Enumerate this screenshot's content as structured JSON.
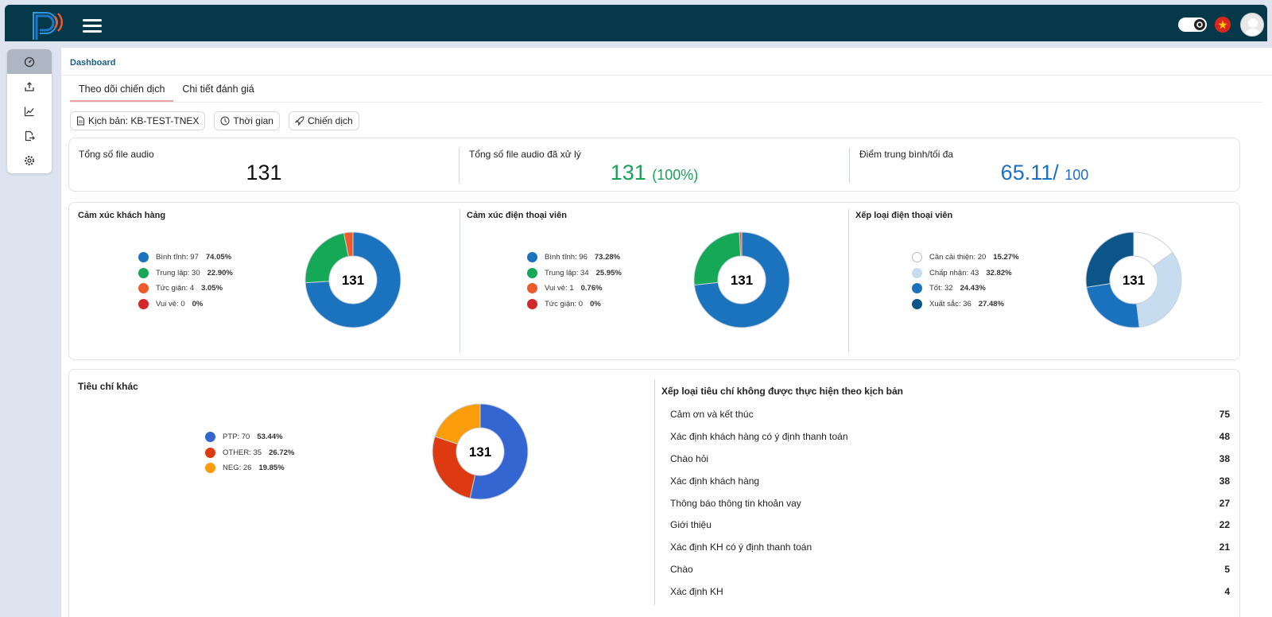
{
  "header": {
    "toggle_state": "on",
    "flag": "vietnam-flag-icon"
  },
  "sidebar": {
    "items": [
      {
        "icon": "dashboard-icon",
        "active": true
      },
      {
        "icon": "upload-icon",
        "active": false
      },
      {
        "icon": "chart-line-icon",
        "active": false
      },
      {
        "icon": "file-export-icon",
        "active": false
      },
      {
        "icon": "gear-icon",
        "active": false
      }
    ]
  },
  "breadcrumb": "Dashboard",
  "tabs": [
    {
      "label": "Theo dõi chiến dịch",
      "active": true
    },
    {
      "label": "Chi tiết đánh giá",
      "active": false
    }
  ],
  "filters": {
    "script": "Kịch bản: KB-TEST-TNEX",
    "time": "Thời gian",
    "campaign": "Chiến dịch"
  },
  "stats": {
    "total": {
      "label": "Tổng số file audio",
      "value": "131"
    },
    "processed": {
      "label": "Tổng số file audio đã xử lý",
      "value": "131",
      "sub": "(100%)"
    },
    "score": {
      "label": "Điểm trung bình/tối đa",
      "value": "65.11/",
      "sub": "100"
    }
  },
  "colors": {
    "accent_green": "#1aa05a",
    "accent_blue": "#1c70c0"
  },
  "chart_data": [
    {
      "type": "pie",
      "title": "Cảm xúc khách hàng",
      "center": "131",
      "slices": [
        {
          "label": "Bình tĩnh: 97",
          "value": 97,
          "pct": "74.05%",
          "color": "#1c73bd"
        },
        {
          "label": "Trung lập: 30",
          "value": 30,
          "pct": "22.90%",
          "color": "#15a857"
        },
        {
          "label": "Tức giận: 4",
          "value": 4,
          "pct": "3.05%",
          "color": "#ef5a2c"
        },
        {
          "label": "Vui vẻ: 0",
          "value": 0,
          "pct": "0%",
          "color": "#d3282a"
        }
      ]
    },
    {
      "type": "pie",
      "title": "Cảm xúc điện thoại viên",
      "center": "131",
      "slices": [
        {
          "label": "Bình tĩnh: 96",
          "value": 96,
          "pct": "73.28%",
          "color": "#1c73bd"
        },
        {
          "label": "Trung lập: 34",
          "value": 34,
          "pct": "25.95%",
          "color": "#15a857"
        },
        {
          "label": "Vui vẻ: 1",
          "value": 1,
          "pct": "0.76%",
          "color": "#ef5a2c"
        },
        {
          "label": "Tức giận: 0",
          "value": 0,
          "pct": "0%",
          "color": "#d3282a"
        }
      ]
    },
    {
      "type": "pie",
      "title": "Xếp loại điện thoại viên",
      "center": "131",
      "slices": [
        {
          "label": "Cần cải thiện: 20",
          "value": 20,
          "pct": "15.27%",
          "color": "#ffffff"
        },
        {
          "label": "Chấp nhận: 43",
          "value": 43,
          "pct": "32.82%",
          "color": "#c7dcee"
        },
        {
          "label": "Tốt: 32",
          "value": 32,
          "pct": "24.43%",
          "color": "#1a72bf"
        },
        {
          "label": "Xuất sắc: 36",
          "value": 36,
          "pct": "27.48%",
          "color": "#0b5589"
        }
      ]
    },
    {
      "type": "pie",
      "title": "Tiêu chí khác",
      "center": "131",
      "slices": [
        {
          "label": "PTP: 70",
          "value": 70,
          "pct": "53.44%",
          "color": "#3565d0"
        },
        {
          "label": "OTHER: 35",
          "value": 35,
          "pct": "26.72%",
          "color": "#dd3a12"
        },
        {
          "label": "NEG: 26",
          "value": 26,
          "pct": "19.85%",
          "color": "#fb9c0a"
        }
      ]
    },
    {
      "type": "table",
      "title": "Xếp loại tiêu chí không được thực hiện theo kịch bản",
      "rows": [
        {
          "label": "Cảm ơn và kết thúc",
          "value": 75
        },
        {
          "label": "Xác định khách hàng có ý định thanh toán",
          "value": 48
        },
        {
          "label": "Chào hỏi",
          "value": 38
        },
        {
          "label": "Xác định khách hàng",
          "value": 38
        },
        {
          "label": "Thông báo thông tin khoản vay",
          "value": 27
        },
        {
          "label": "Giới thiệu",
          "value": 22
        },
        {
          "label": "Xác định KH có ý định thanh toán",
          "value": 21
        },
        {
          "label": "Chào",
          "value": 5
        },
        {
          "label": "Xác định KH",
          "value": 4
        }
      ]
    }
  ]
}
